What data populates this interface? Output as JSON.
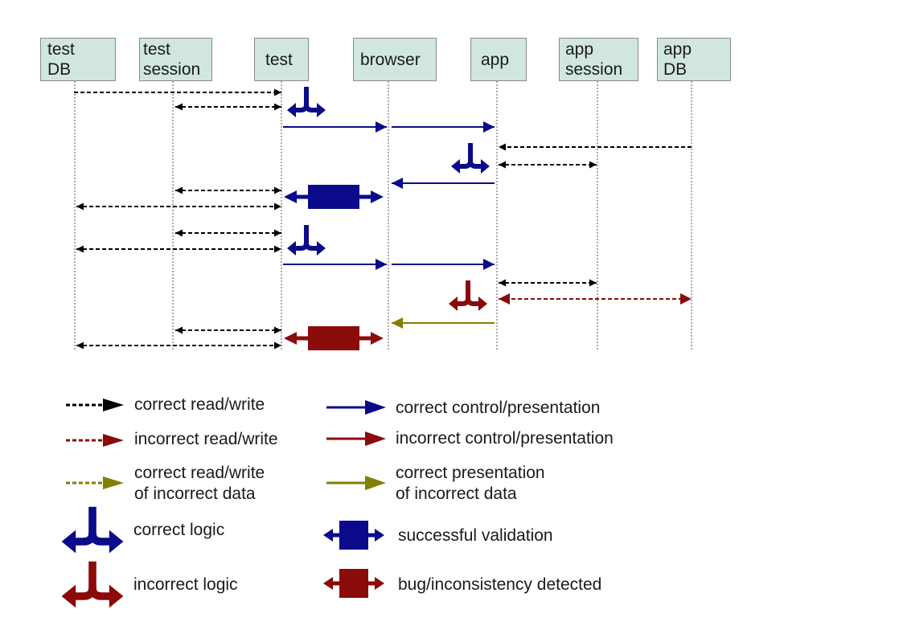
{
  "colors": {
    "box_fill": "#d1e6e1",
    "correct": "#0a0a8a",
    "incorrect": "#8b0a0a",
    "incorrect_data": "#808000",
    "data": "#000000"
  },
  "participants": [
    {
      "label": "test\nDB"
    },
    {
      "label": "test\nsession"
    },
    {
      "label": "test"
    },
    {
      "label": "browser"
    },
    {
      "label": "app"
    },
    {
      "label": "app\nsession"
    },
    {
      "label": "app\nDB"
    }
  ],
  "legend": {
    "correct_read_write": "correct read/write",
    "incorrect_read_write": "incorrect read/write",
    "correct_read_write_incorrect_data": "correct read/write\nof incorrect data",
    "correct_logic": "correct logic",
    "incorrect_logic": "incorrect logic",
    "correct_control_presentation": "correct control/presentation",
    "incorrect_control_presentation": "incorrect control/presentation",
    "correct_presentation_incorrect_data": "correct presentation\nof incorrect data",
    "successful_validation": "successful validation",
    "bug_detected": "bug/inconsistency detected"
  },
  "icons": {
    "logic": "fork-arrow-icon",
    "validation": "validation-block-icon"
  }
}
